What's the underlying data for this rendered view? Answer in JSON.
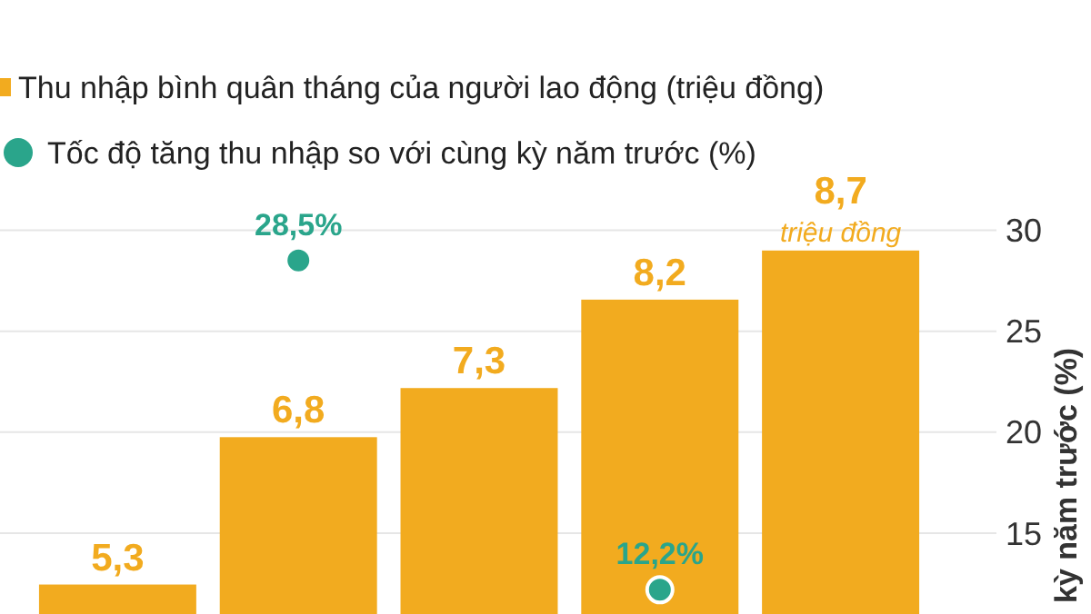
{
  "chart_data": {
    "type": "bar",
    "categories": [
      null,
      null,
      null,
      null,
      null
    ],
    "ylim": [
      0,
      11.25
    ],
    "tick_labels": "y2",
    "series": [
      {
        "name": "Thu nhập bình quân tháng của người lao động (triệu đồng)",
        "color": "#f2ab1f",
        "values": [
          5.3,
          6.8,
          7.3,
          8.2,
          8.7
        ],
        "value_labels": [
          "5,3",
          "6,8",
          "7,3",
          "8,2",
          "8,7"
        ]
      },
      {
        "name": "Tốc độ tăng thu nhập so với cùng kỳ năm trước (%)",
        "type": "scatter",
        "axis": "y2",
        "color": "#2aa58b",
        "values": [
          null,
          28.5,
          null,
          12.2,
          null
        ],
        "value_labels": [
          null,
          "28,5%",
          null,
          "12,2%",
          null
        ]
      }
    ],
    "y2lim": [
      11,
      41.4
    ],
    "y2ticks": [
      15,
      20,
      25,
      30
    ],
    "y2label": "kỳ năm trước (%)",
    "grid": "y",
    "legend": "top left",
    "marker": "circle",
    "annotations": [
      "triệu đồng"
    ]
  }
}
